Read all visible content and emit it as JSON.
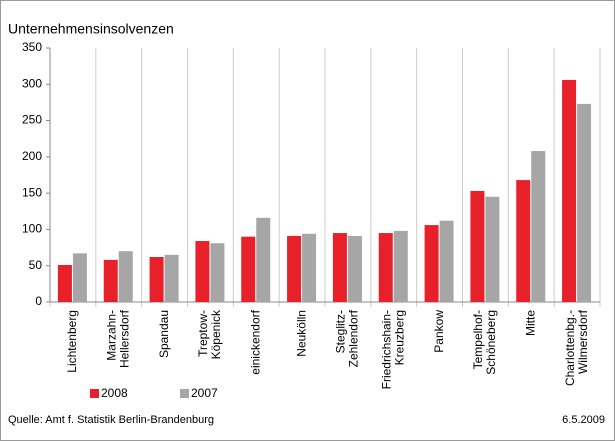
{
  "chart_data": {
    "type": "bar",
    "title": "Unternehmensinsolvenzen",
    "categories": [
      [
        "Lichtenberg"
      ],
      [
        "Marzahn-",
        "Hellersdorf"
      ],
      [
        "Spandau"
      ],
      [
        "Treptow-",
        "Köpenick"
      ],
      [
        "einickendorf"
      ],
      [
        "Neukölln"
      ],
      [
        "Steglitz-",
        "Zehlendorf"
      ],
      [
        "Friedrichshain-",
        "Kreuzberg"
      ],
      [
        "Pankow"
      ],
      [
        "Tempelhof-",
        "Schöneberg"
      ],
      [
        "Mitte"
      ],
      [
        "Charlottenbg.-",
        "Wilmersdorf"
      ]
    ],
    "series": [
      {
        "name": "2008",
        "color": "#e8202a",
        "values": [
          51,
          58,
          62,
          84,
          90,
          91,
          95,
          95,
          106,
          153,
          168,
          306
        ]
      },
      {
        "name": "2007",
        "color": "#a6a6a6",
        "values": [
          67,
          70,
          65,
          81,
          116,
          94,
          91,
          98,
          112,
          145,
          208,
          273
        ]
      }
    ],
    "ylim": [
      0,
      350
    ],
    "yticks": [
      0,
      50,
      100,
      150,
      200,
      250,
      300,
      350
    ],
    "source": "Quelle: Amt f. Statistik Berlin-Brandenburg",
    "date": "6.5.2009"
  }
}
